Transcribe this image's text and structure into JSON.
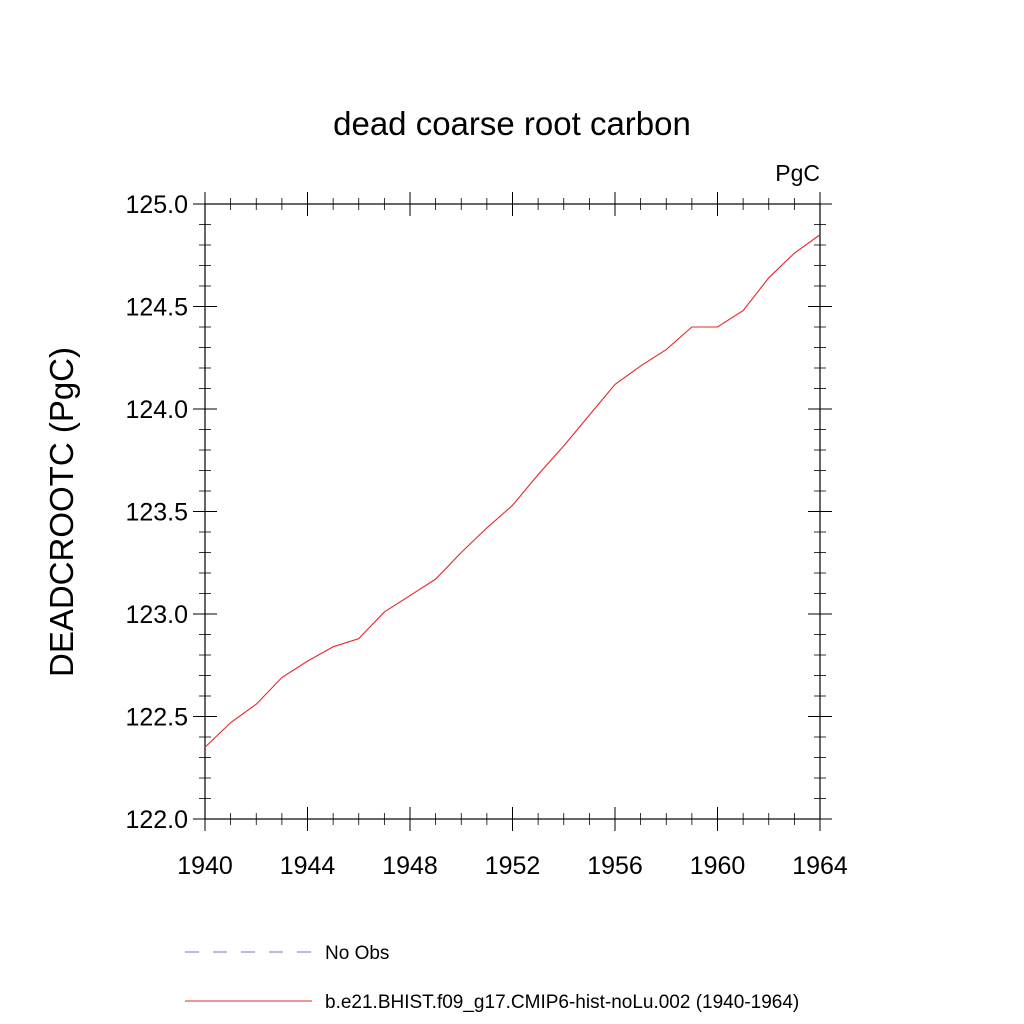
{
  "chart_data": {
    "type": "line",
    "title": "dead coarse root carbon",
    "units": "PgC",
    "ylabel": "DEADCROOTC  (PgC)",
    "xlabel": "",
    "xlim": [
      1940,
      1964
    ],
    "ylim": [
      122.0,
      125.0
    ],
    "x_ticks": [
      "1940",
      "1944",
      "1948",
      "1952",
      "1956",
      "1960",
      "1964"
    ],
    "y_ticks": [
      "122.0",
      "122.5",
      "123.0",
      "123.5",
      "124.0",
      "124.5",
      "125.0"
    ],
    "grid": false,
    "legend_position": "bottom",
    "series": [
      {
        "name": "No Obs",
        "color": "#7b6fc4",
        "dash": "dashed",
        "x": [],
        "values": []
      },
      {
        "name": "b.e21.BHIST.f09_g17.CMIP6-hist-noLu.002 (1940-1964)",
        "color": "#e8262a",
        "dash": "solid",
        "x": [
          1940,
          1941,
          1942,
          1943,
          1944,
          1945,
          1946,
          1947,
          1948,
          1949,
          1950,
          1951,
          1952,
          1953,
          1954,
          1955,
          1956,
          1957,
          1958,
          1959,
          1960,
          1961,
          1962,
          1963,
          1964
        ],
        "values": [
          122.35,
          122.47,
          122.56,
          122.69,
          122.77,
          122.84,
          122.88,
          123.01,
          123.09,
          123.17,
          123.3,
          123.42,
          123.53,
          123.68,
          123.82,
          123.97,
          124.12,
          124.21,
          124.29,
          124.4,
          124.4,
          124.48,
          124.64,
          124.76,
          124.85
        ]
      }
    ]
  }
}
